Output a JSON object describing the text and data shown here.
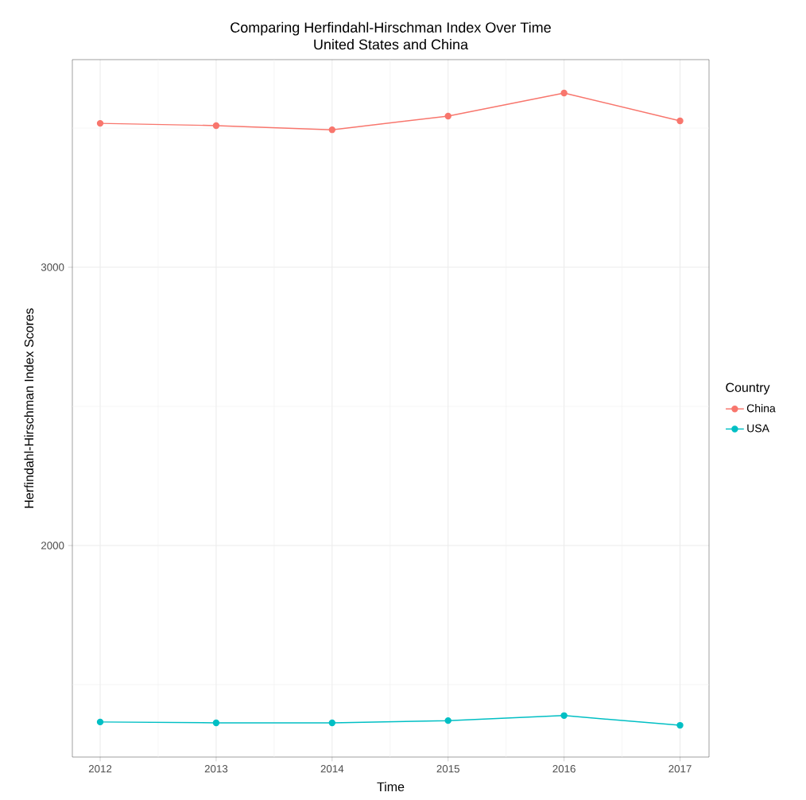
{
  "chart_data": {
    "type": "line",
    "title": "Comparing Herfindahl-Hirschman Index Over Time\nUnited States and China",
    "xlabel": "Time",
    "ylabel": "Herfindahl-Hirschman Index Scores",
    "legend_title": "Country",
    "x": [
      2012,
      2013,
      2014,
      2015,
      2016,
      2017
    ],
    "series": [
      {
        "name": "China",
        "color": "#f8766d",
        "values": [
          3517,
          3509,
          3494,
          3543,
          3626,
          3526
        ]
      },
      {
        "name": "USA",
        "color": "#00bfc4",
        "values": [
          1366,
          1363,
          1363,
          1371,
          1389,
          1354
        ]
      }
    ],
    "xlim": [
      2011.76,
      2017.25
    ],
    "ylim": [
      1240,
      3746
    ],
    "xticks": [
      2012,
      {
        "value": 2012.5,
        "label": null
      },
      2013,
      {
        "value": 2013.5,
        "label": null
      },
      2014,
      {
        "value": 2014.5,
        "label": null
      },
      2015,
      {
        "value": 2015.5,
        "label": null
      },
      2016,
      {
        "value": 2016.5,
        "label": null
      },
      2017
    ],
    "yticks": [
      {
        "value": 1500,
        "label": null
      },
      2000,
      {
        "value": 2500,
        "label": null
      },
      3000,
      {
        "value": 3500,
        "label": null
      }
    ],
    "grid": true,
    "legend": "right",
    "marker": "circle",
    "line_style": "solid"
  }
}
